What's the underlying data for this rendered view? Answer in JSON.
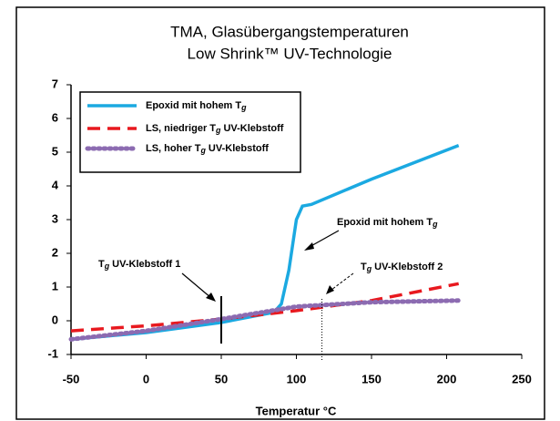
{
  "chart_data": {
    "type": "line",
    "title": "TMA, Glasübergangstemperaturen",
    "subtitle": "Low Shrink™ UV-Technologie",
    "x_label": "Temperatur °C",
    "xlim": [
      -50,
      250
    ],
    "ylim": [
      -1,
      7
    ],
    "xticks": [
      -50,
      0,
      50,
      100,
      150,
      200,
      250
    ],
    "yticks": [
      -1,
      0,
      1,
      2,
      3,
      4,
      5,
      6,
      7
    ],
    "legend": "upper left",
    "series": [
      {
        "name": "Epoxid mit hohem Tg",
        "color": "#1ba9e1",
        "style": "solid",
        "x": [
          -50,
          0,
          50,
          85,
          90,
          95,
          100,
          104,
          110,
          150,
          208
        ],
        "values": [
          -0.55,
          -0.35,
          -0.05,
          0.25,
          0.5,
          1.5,
          3.0,
          3.4,
          3.45,
          4.2,
          5.2
        ]
      },
      {
        "name": "LS, niedriger Tg UV-Klebstoff",
        "color": "#e8191f",
        "style": "dashed",
        "x": [
          -50,
          0,
          50,
          100,
          150,
          208
        ],
        "values": [
          -0.3,
          -0.15,
          0.05,
          0.3,
          0.6,
          1.1
        ]
      },
      {
        "name": "LS, hoher Tg UV-Klebstoff",
        "color": "#8c6bb1",
        "style": "dotted",
        "x": [
          -50,
          0,
          50,
          100,
          150,
          208
        ],
        "values": [
          -0.55,
          -0.3,
          0.05,
          0.42,
          0.55,
          0.6
        ]
      }
    ],
    "annotations": [
      {
        "text": "Epoxid mit hohem Tg"
      },
      {
        "text": "Tg UV-Klebstoff 1",
        "x": 50
      },
      {
        "text": "Tg UV-Klebstoff 2",
        "x": 117
      }
    ]
  }
}
